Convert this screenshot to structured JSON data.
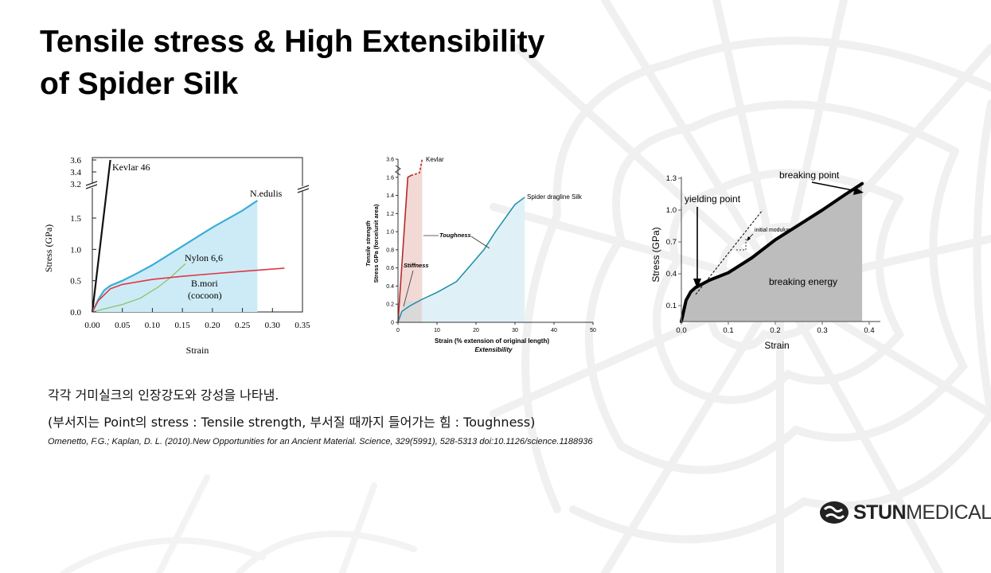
{
  "slide": {
    "title_line1": "Tensile stress & High Extensibility",
    "title_line2": "of Spider Silk",
    "caption_line1": "각각 거미실크의 인장강도와 강성을 나타냄.",
    "caption_line2": "(부서지는 Point의 stress : Tensile strength, 부서질 때까지 들어가는 힘 : Toughness)",
    "citation": "Omenetto, F.G.; Kaplan, D. L. (2010).New Opportunities for an Ancient Material. Science, 329(5991), 528-5313 doi:10.1126/science.1188936",
    "logo_bold": "STUN",
    "logo_light": "MEDICAL"
  },
  "colors": {
    "shade_blue": "#cdebf6",
    "nedulis": "#3aaed8",
    "bmori": "#de3846",
    "nylon": "#8cc26b",
    "kevlar": "#111111",
    "kevlar2": "#b52a2a",
    "toughness_fill": "#dff1f6",
    "stiffness_fill": "#f2d9d6",
    "grey_fill": "#bdbdbd"
  },
  "chart_data": [
    {
      "type": "line",
      "xlabel": "Strain",
      "ylabel": "Stress (GPa)",
      "xlim": [
        0,
        0.35
      ],
      "xticks": [
        "0.00",
        "0.05",
        "0.10",
        "0.15",
        "0.20",
        "0.25",
        "0.30",
        "0.35"
      ],
      "yticks": [
        "0.0",
        "0.5",
        "1.0",
        "1.5",
        "3.2",
        "3.4",
        "3.6"
      ],
      "axis_break": true,
      "series": [
        {
          "name": "Kevlar 46",
          "x": [
            0,
            0.03
          ],
          "y": [
            0,
            3.6
          ]
        },
        {
          "name": "N.edulis",
          "x": [
            0,
            0.01,
            0.02,
            0.03,
            0.05,
            0.075,
            0.1,
            0.15,
            0.2,
            0.25,
            0.275
          ],
          "y": [
            0,
            0.2,
            0.35,
            0.42,
            0.5,
            0.62,
            0.75,
            1.05,
            1.35,
            1.62,
            1.78
          ]
        },
        {
          "name": "Nylon 6,6",
          "x": [
            0,
            0.02,
            0.05,
            0.08,
            0.11,
            0.13,
            0.155
          ],
          "y": [
            0,
            0.05,
            0.12,
            0.22,
            0.4,
            0.55,
            0.77
          ]
        },
        {
          "name": "B.mori",
          "x": [
            0,
            0.01,
            0.03,
            0.05,
            0.1,
            0.15,
            0.2,
            0.25,
            0.32
          ],
          "y": [
            0,
            0.18,
            0.37,
            0.44,
            0.52,
            0.57,
            0.61,
            0.65,
            0.7
          ]
        }
      ],
      "labels": {
        "kevlar": "Kevlar 46",
        "nedulis": "N.edulis",
        "nylon": "Nylon 6,6",
        "bmori1": "B.mori",
        "bmori2": "(cocoon)"
      }
    },
    {
      "type": "line",
      "ylabel_line1": "Tensile strength",
      "ylabel_line2": "Stress GPa (force/unit area)",
      "xlabel": "Strain (% extension of original length)",
      "xlabel2": "Extensibility",
      "xlim": [
        0,
        50
      ],
      "ylim": [
        0,
        1.8
      ],
      "xticks": [
        "0",
        "10",
        "20",
        "30",
        "40",
        "50"
      ],
      "yticks": [
        "0",
        "0.2",
        "0.4",
        "0.6",
        "0.8",
        "1.0",
        "1.2",
        "1.4",
        "1.6",
        "3.6"
      ],
      "axis_break": true,
      "series": [
        {
          "name": "Kevlar",
          "x": [
            0,
            2.5,
            3.3,
            5.5,
            6.2
          ],
          "y": [
            0,
            1.6,
            1.62,
            1.65,
            1.8
          ]
        },
        {
          "name": "Spider dragline Silk",
          "x": [
            0,
            1,
            3,
            6,
            10,
            15,
            18,
            22,
            25,
            28,
            30,
            32.5
          ],
          "y": [
            0,
            0.12,
            0.18,
            0.25,
            0.33,
            0.45,
            0.6,
            0.8,
            1.0,
            1.18,
            1.3,
            1.38
          ]
        }
      ],
      "annotations": {
        "toughness": "Toughness",
        "stiffness": "Stiffness",
        "kevlar": "Kevlar",
        "spider": "Spider dragline Silk"
      }
    },
    {
      "type": "area",
      "xlabel": "Strain",
      "ylabel": "Stress (GPa)",
      "xlim": [
        0,
        0.4
      ],
      "xticks": [
        "0.0",
        "0.1",
        "0.2",
        "0.3",
        "0.4"
      ],
      "yticks": [
        "0.1",
        "0.4",
        "0.7",
        "1.0",
        "1.3"
      ],
      "series": [
        {
          "x": [
            0,
            0.01,
            0.02,
            0.03,
            0.06,
            0.1,
            0.15,
            0.2,
            0.25,
            0.3,
            0.35,
            0.385
          ],
          "y": [
            0,
            0.15,
            0.23,
            0.27,
            0.34,
            0.41,
            0.55,
            0.72,
            0.86,
            1.0,
            1.15,
            1.25
          ]
        }
      ],
      "annotations": {
        "yielding": "yielding point",
        "breaking": "breaking point",
        "modulus": "initial modulus",
        "energy": "breaking energy"
      }
    }
  ]
}
